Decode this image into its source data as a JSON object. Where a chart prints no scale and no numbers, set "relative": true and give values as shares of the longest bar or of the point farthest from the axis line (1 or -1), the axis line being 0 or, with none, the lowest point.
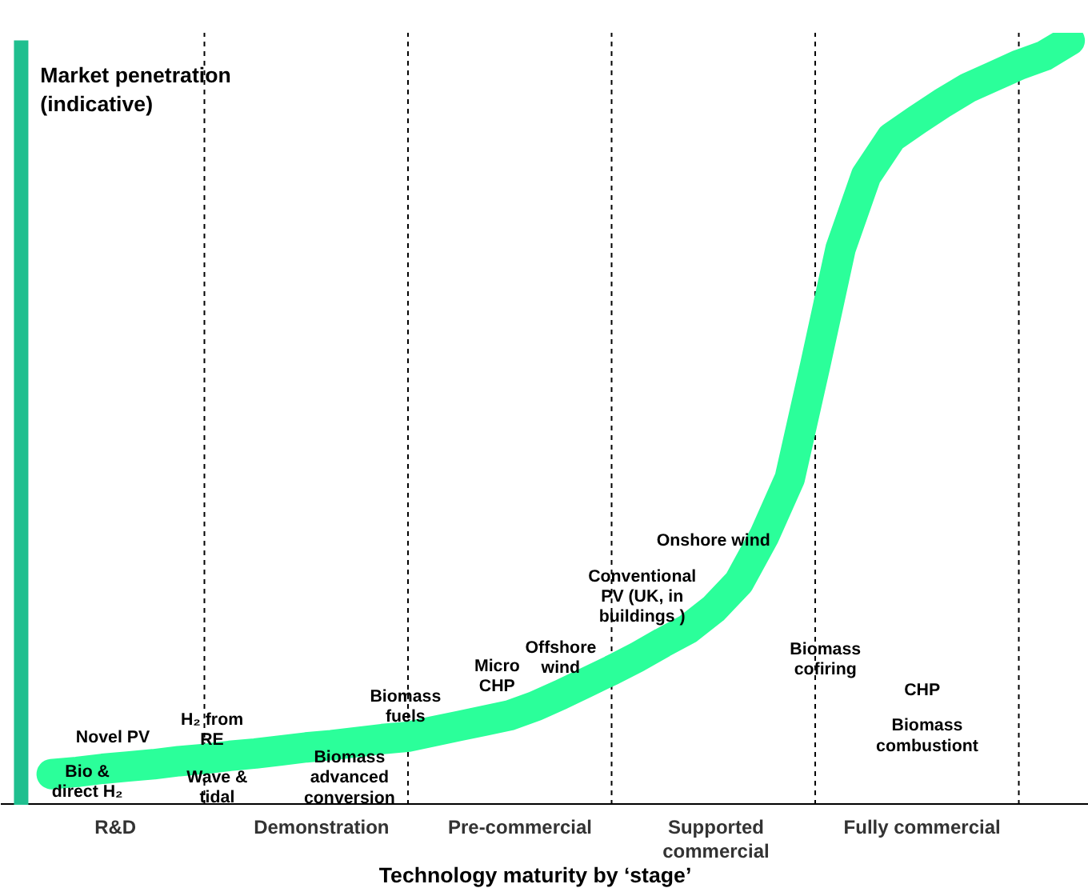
{
  "chart_data": {
    "type": "line",
    "relative": true,
    "xlabel": "Technology maturity by ‘stage’",
    "ylabel": "Market penetration\n(indicative)",
    "categories": [
      null,
      null,
      null,
      null,
      null,
      null,
      null,
      null,
      null,
      null,
      null,
      null,
      null,
      null,
      null,
      null,
      null,
      null,
      null,
      null,
      null,
      null,
      null,
      null,
      null,
      null,
      null,
      null,
      null,
      null,
      null,
      null,
      null,
      null,
      null,
      null,
      null,
      null,
      null,
      null,
      null
    ],
    "series": [
      {
        "color": "#2bff9a",
        "values": [
          0.04,
          0.043,
          0.047,
          0.05,
          0.053,
          0.057,
          0.06,
          0.064,
          0.067,
          0.071,
          0.075,
          0.078,
          0.082,
          0.086,
          0.089,
          0.096,
          0.103,
          0.11,
          0.117,
          0.129,
          0.144,
          0.16,
          0.176,
          0.193,
          0.212,
          0.23,
          0.256,
          0.291,
          0.352,
          0.427,
          0.575,
          0.728,
          0.823,
          0.873,
          0.896,
          0.918,
          0.938,
          0.953,
          0.968,
          0.98,
          1.0
        ]
      }
    ],
    "grid": "x",
    "annotations": [
      "Novel PV",
      "Bio &\ndirect H₂",
      "H₂ from\nRE",
      "Wave &\ntidal",
      "Biomass\nadvanced\nconversion",
      "Biomass\nfuels",
      "Micro\nCHP",
      "Offshore\nwind",
      "Conventional\nPV (UK, in\nbuildings )",
      "Onshore wind",
      "Biomass\ncofiring",
      "CHP",
      "Biomass\ncombustiont",
      "R&D",
      "Demonstration",
      "Pre-commercial",
      "Supported\ncommercial",
      "Fully commercial"
    ]
  }
}
